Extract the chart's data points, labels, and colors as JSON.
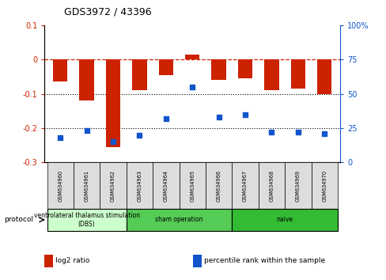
{
  "title": "GDS3972 / 43396",
  "samples": [
    "GSM634960",
    "GSM634961",
    "GSM634962",
    "GSM634963",
    "GSM634964",
    "GSM634965",
    "GSM634966",
    "GSM634967",
    "GSM634968",
    "GSM634969",
    "GSM634970"
  ],
  "log2_ratio": [
    -0.065,
    -0.12,
    -0.255,
    -0.09,
    -0.045,
    0.015,
    -0.06,
    -0.055,
    -0.09,
    -0.085,
    -0.1
  ],
  "percentile_rank": [
    18,
    23,
    15,
    20,
    32,
    55,
    33,
    35,
    22,
    22,
    21
  ],
  "ylim_left": [
    -0.3,
    0.1
  ],
  "ylim_right": [
    0,
    100
  ],
  "yticks_left": [
    -0.3,
    -0.2,
    -0.1,
    0.0,
    0.1
  ],
  "yticks_right": [
    0,
    25,
    50,
    75,
    100
  ],
  "bar_color": "#cc2200",
  "dot_color": "#1155cc",
  "dashed_line_color": "#cc2200",
  "dotted_line_color": "#000000",
  "protocol_groups": [
    {
      "label": "ventrolateral thalamus stimulation\n(DBS)",
      "start": 0,
      "end": 3,
      "color": "#ccffcc"
    },
    {
      "label": "sham operation",
      "start": 3,
      "end": 7,
      "color": "#55cc55"
    },
    {
      "label": "naive",
      "start": 7,
      "end": 11,
      "color": "#33bb33"
    }
  ],
  "left_axis_color": "#cc2200",
  "right_axis_color": "#1155cc",
  "legend_items": [
    {
      "label": "log2 ratio",
      "color": "#cc2200"
    },
    {
      "label": "percentile rank within the sample",
      "color": "#1155cc"
    }
  ]
}
